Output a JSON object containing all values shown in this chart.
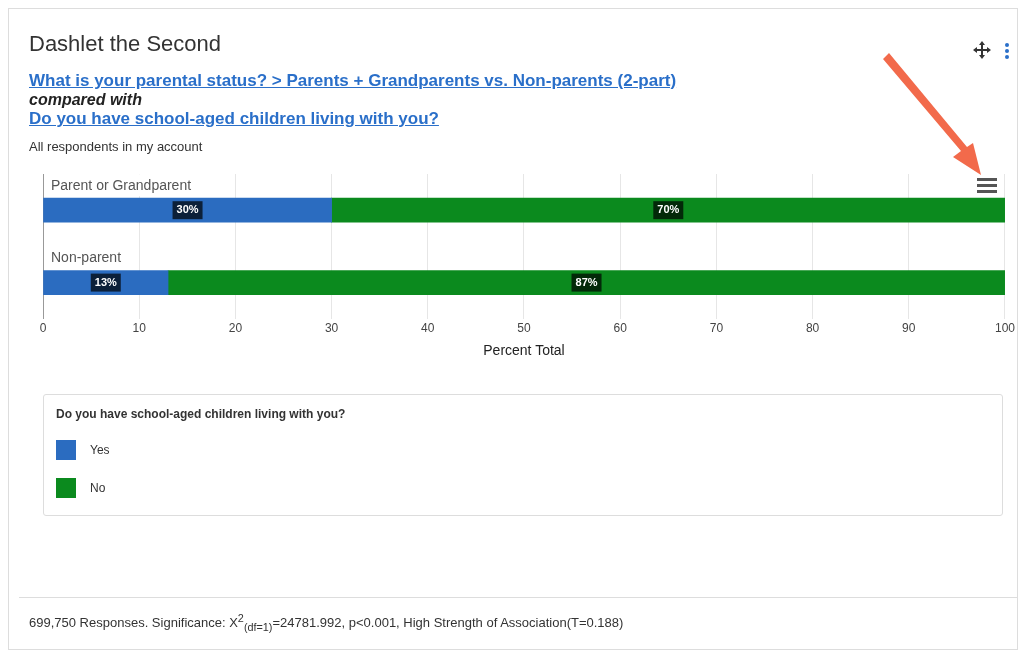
{
  "chart_data": {
    "type": "bar",
    "orientation": "horizontal",
    "stacked": true,
    "title": "Dashlet the Second",
    "subtitle": "What is your parental status? > Parents + Grandparents vs. Non-parents (2-part)",
    "annotations": [
      "compared with",
      "Do you have school-aged children living with you?",
      "All respondents in my account",
      "699,750 Responses. Significance: X$^{2}$$_{(df=1)}$=24781.992, p<0.001, High Strength of Association(T=0.188)"
    ],
    "categories": [
      "Parent or Grandparent",
      "Non-parent"
    ],
    "series": [
      {
        "name": "Yes",
        "color": "#2b6cc0",
        "values": [
          30,
          13
        ],
        "value_labels": [
          "30%",
          "13%"
        ]
      },
      {
        "name": "No",
        "color": "#0b8a1e",
        "values": [
          70,
          87
        ],
        "value_labels": [
          "70%",
          "87%"
        ]
      }
    ],
    "xlabel": "Percent Total",
    "legend_title": "Do you have school-aged children living with you?",
    "xlim": [
      0,
      100
    ],
    "xticks": [
      0,
      10,
      20,
      30,
      40,
      50,
      60,
      70,
      80,
      90,
      100
    ],
    "grid": "x",
    "legend": "bottom"
  }
}
